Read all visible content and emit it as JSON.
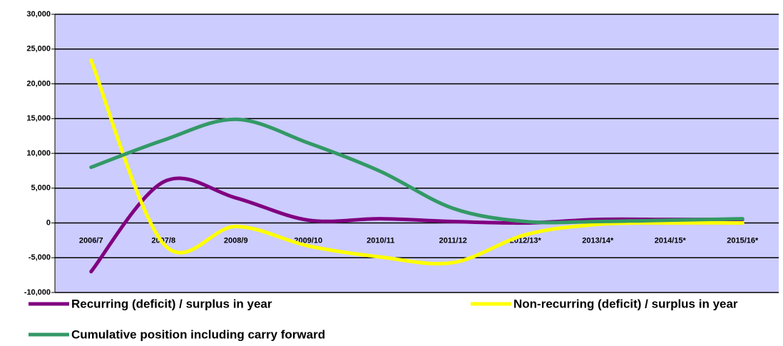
{
  "chart_data": {
    "type": "line",
    "categories": [
      "2006/7",
      "2007/8",
      "2008/9",
      "2009/10",
      "2010/11",
      "2011/12",
      "2012/13*",
      "2013/14*",
      "2014/15*",
      "2015/16*"
    ],
    "series": [
      {
        "name": "Recurring (deficit) / surplus in year",
        "color": "#800080",
        "values": [
          -7000,
          5900,
          3600,
          400,
          600,
          200,
          0,
          500,
          500,
          500
        ]
      },
      {
        "name": "Non-recurring (deficit) / surplus in year",
        "color": "#ffff00",
        "values": [
          23400,
          -3000,
          -500,
          -3300,
          -4900,
          -5700,
          -1700,
          -200,
          0,
          0
        ]
      },
      {
        "name": "Cumulative position including carry forward",
        "color": "#339966",
        "values": [
          8000,
          11900,
          14900,
          11500,
          7400,
          2100,
          200,
          200,
          400,
          600
        ]
      }
    ],
    "ylim": [
      -10000,
      30000
    ],
    "yticks": [
      {
        "value": -10000,
        "label": "-10,000"
      },
      {
        "value": -5000,
        "label": "-5,000"
      },
      0,
      {
        "value": 5000,
        "label": "5,000"
      },
      {
        "value": 10000,
        "label": "10,000"
      },
      {
        "value": 15000,
        "label": "15,000"
      },
      {
        "value": 20000,
        "label": "20,000"
      },
      {
        "value": 25000,
        "label": "25,000"
      },
      {
        "value": 30000,
        "label": "30,000"
      }
    ],
    "grid": true,
    "plot_background": "#ccccff"
  }
}
